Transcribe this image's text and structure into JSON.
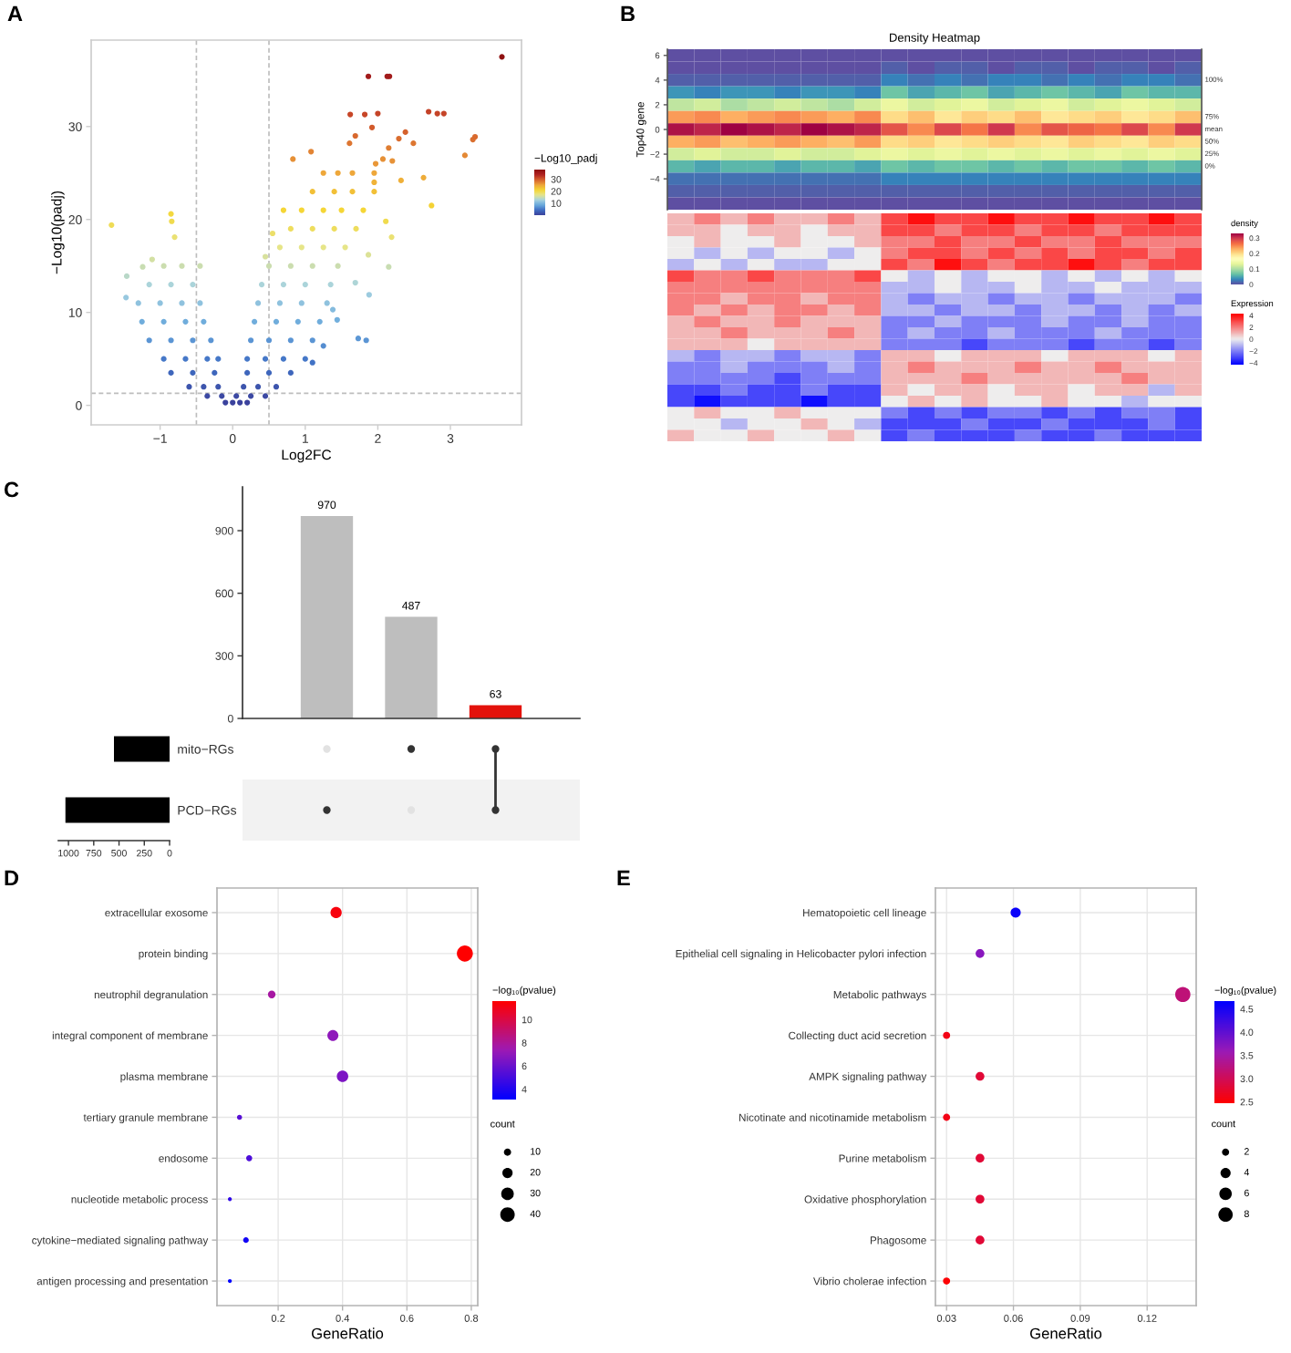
{
  "chart_data": [
    {
      "type": "scatter",
      "x": [
        -0.1,
        0,
        0.1,
        0.2,
        -0.35,
        -0.15,
        0.05,
        0.25,
        0.45,
        -0.6,
        -0.4,
        -0.2,
        0.15,
        0.35,
        0.6,
        -0.85,
        -0.55,
        -0.25,
        0.2,
        0.5,
        0.8,
        -0.95,
        -0.65,
        -0.35,
        -0.2,
        0.2,
        0.45,
        0.7,
        1.0,
        -1.15,
        -0.85,
        -0.55,
        -0.3,
        0.25,
        0.5,
        0.8,
        1.1,
        -1.25,
        -0.95,
        -0.65,
        -0.4,
        0.3,
        0.6,
        0.9,
        1.2,
        -1.3,
        -1.0,
        -0.7,
        -0.45,
        0.35,
        0.65,
        0.95,
        1.3,
        -1.15,
        -0.85,
        -0.55,
        0.4,
        0.7,
        1.0,
        1.35,
        -0.95,
        -0.7,
        -0.45,
        0.5,
        0.8,
        1.1,
        1.45,
        0.65,
        0.95,
        1.25,
        1.55,
        0.8,
        1.1,
        1.4,
        1.7,
        0.95,
        1.25,
        1.5,
        1.8,
        1.1,
        1.4,
        1.65,
        1.95,
        1.25,
        1.45,
        1.65,
        1.95,
        3.71,
        1.87,
        2.13,
        2.16,
        1.62,
        1.82,
        2.0,
        2.7,
        2.82,
        2.91,
        3.2,
        3.31,
        3.34,
        2.74,
        2.63,
        1.84,
        1.73,
        0.83,
        1.08,
        2.38,
        2.29,
        2.49,
        2.15,
        1.92,
        1.69,
        1.61,
        1.97,
        2.07,
        2.2,
        2.32,
        1.95,
        2.11,
        2.19,
        1.87,
        2.15,
        1.69,
        1.88,
        1.38,
        1.44,
        1.25,
        1.1,
        -0.85,
        -0.84,
        -0.8,
        -1.11,
        -1.24,
        -1.46,
        -1.47,
        -1.67,
        0.7,
        0.45,
        0.55
      ],
      "values": [
        0.3,
        0.3,
        0.3,
        0.3,
        1,
        1,
        1,
        1,
        1,
        2,
        2,
        2,
        2,
        2,
        2,
        3.5,
        3.5,
        3.5,
        3.5,
        3.5,
        3.5,
        5,
        5,
        5,
        5,
        5,
        5,
        5,
        5,
        7,
        7,
        7,
        7,
        7,
        7,
        7,
        7,
        9,
        9,
        9,
        9,
        9,
        9,
        9,
        9,
        11,
        11,
        11,
        11,
        11,
        11,
        11,
        11,
        13,
        13,
        13,
        13,
        13,
        13,
        13,
        15,
        15,
        15,
        15,
        15,
        15,
        15,
        17,
        17,
        17,
        17,
        19,
        19,
        19,
        19,
        21,
        21,
        21,
        21,
        23,
        23,
        23,
        23,
        25,
        25,
        25,
        25,
        37.5,
        35.4,
        35.4,
        35.4,
        31.3,
        31.3,
        31.4,
        31.6,
        31.4,
        31.4,
        26.9,
        28.6,
        28.9,
        21.5,
        24.5,
        7.0,
        7.2,
        26.5,
        27.3,
        29.4,
        28.7,
        28.2,
        27.7,
        29.9,
        29.0,
        28.2,
        26.0,
        26.5,
        26.3,
        24.2,
        24.0,
        19.8,
        18.1,
        16.2,
        14.9,
        13.2,
        11.9,
        10.3,
        9.2,
        6.4,
        4.6,
        20.6,
        19.8,
        18.1,
        15.7,
        14.9,
        13.9,
        11.6,
        19.4,
        21.0,
        16.0,
        18.5
      ],
      "cvalues": [
        0.3,
        0.3,
        0.3,
        0.3,
        1,
        1,
        1,
        1,
        1,
        2,
        2,
        2,
        2,
        2,
        2,
        3.5,
        3.5,
        3.5,
        3.5,
        3.5,
        3.5,
        5,
        5,
        5,
        5,
        5,
        5,
        5,
        5,
        7,
        7,
        7,
        7,
        7,
        7,
        7,
        7,
        9,
        9,
        9,
        9,
        9,
        9,
        9,
        9,
        11,
        11,
        11,
        11,
        11,
        11,
        11,
        11,
        13,
        13,
        13,
        13,
        13,
        13,
        13,
        15,
        15,
        15,
        15,
        15,
        15,
        15,
        17,
        17,
        17,
        17,
        19,
        19,
        19,
        19,
        21,
        21,
        21,
        21,
        23,
        23,
        23,
        23,
        25,
        25,
        25,
        25,
        37.5,
        35.4,
        35.4,
        35.4,
        31.3,
        31.3,
        31.4,
        31.6,
        31.4,
        31.4,
        26.9,
        28.6,
        28.9,
        21.5,
        24.5,
        7.0,
        7.2,
        26.5,
        27.3,
        29.4,
        28.7,
        28.2,
        27.7,
        29.9,
        29.0,
        28.2,
        26.0,
        26.5,
        26.3,
        24.2,
        24.0,
        19.8,
        18.1,
        16.2,
        14.9,
        13.2,
        11.9,
        10.3,
        9.2,
        6.4,
        4.6,
        20.6,
        19.8,
        18.1,
        15.7,
        14.9,
        13.9,
        11.6,
        19.4,
        21.0,
        16.0,
        18.5
      ],
      "clim": [
        0,
        38
      ],
      "cticks": [
        10,
        20,
        30
      ],
      "clabel": "−Log10_padj",
      "marker": "circle",
      "xlabel": "Log2FC",
      "ylabel": "−Log10(padj)",
      "xlim": [
        -1.95,
        3.98
      ],
      "ylim": [
        -2.1,
        39.3
      ],
      "xticks": [
        {
          "value": -1,
          "label": "−1"
        },
        0,
        1,
        2,
        3
      ],
      "yticks": [
        0,
        10,
        20,
        30
      ],
      "ref_lines": [
        {
          "axis": "x",
          "value": -0.5,
          "line_style": "dashed",
          "color": "#bdbdbd"
        },
        {
          "axis": "x",
          "value": 0.5,
          "line_style": "dashed",
          "color": "#bdbdbd"
        },
        {
          "axis": "y",
          "value": 1.3,
          "line_style": "dashed",
          "color": "#bdbdbd"
        }
      ],
      "annotations": [
        "A"
      ]
    },
    {
      "type": "heatmap",
      "title": "Density Heatmap",
      "ylabel": "Top40 gene",
      "categories": [
        null,
        null,
        null,
        null,
        null,
        null,
        null,
        null,
        null,
        null,
        null,
        null,
        null,
        null,
        null,
        null,
        null,
        null,
        null,
        null
      ],
      "y_categories": [
        "6",
        null,
        "4",
        null,
        "2",
        null,
        "0",
        null,
        "−2",
        null,
        "−4",
        null,
        null
      ],
      "y2_categories": [
        null,
        null,
        "100%",
        null,
        null,
        "75%",
        "mean",
        "50%",
        "25%",
        "0%",
        null,
        null,
        null
      ],
      "cells": [
        [
          0,
          0,
          0,
          0,
          0,
          0,
          0,
          0,
          0,
          0,
          0,
          0,
          0,
          0,
          0,
          0,
          0,
          0,
          0,
          0
        ],
        [
          0,
          0,
          0,
          0,
          0,
          0,
          0,
          0,
          0.01,
          0,
          0.01,
          0.01,
          0,
          0.01,
          0.01,
          0,
          0.01,
          0.01,
          0,
          0.01
        ],
        [
          0.01,
          0.01,
          0.01,
          0.01,
          0.01,
          0.01,
          0.01,
          0.01,
          0.03,
          0.02,
          0.03,
          0.02,
          0.03,
          0.03,
          0.02,
          0.03,
          0.02,
          0.03,
          0.03,
          0.02
        ],
        [
          0.04,
          0.03,
          0.04,
          0.04,
          0.03,
          0.04,
          0.04,
          0.03,
          0.07,
          0.05,
          0.06,
          0.07,
          0.05,
          0.06,
          0.07,
          0.06,
          0.05,
          0.07,
          0.06,
          0.06
        ],
        [
          0.11,
          0.12,
          0.1,
          0.11,
          0.12,
          0.11,
          0.1,
          0.12,
          0.14,
          0.12,
          0.13,
          0.14,
          0.12,
          0.13,
          0.14,
          0.12,
          0.13,
          0.14,
          0.13,
          0.12
        ],
        [
          0.24,
          0.25,
          0.23,
          0.24,
          0.25,
          0.24,
          0.23,
          0.25,
          0.2,
          0.22,
          0.19,
          0.21,
          0.2,
          0.22,
          0.19,
          0.2,
          0.21,
          0.19,
          0.2,
          0.22
        ],
        [
          0.32,
          0.31,
          0.33,
          0.32,
          0.31,
          0.33,
          0.32,
          0.31,
          0.28,
          0.25,
          0.29,
          0.26,
          0.3,
          0.25,
          0.28,
          0.27,
          0.26,
          0.29,
          0.25,
          0.3
        ],
        [
          0.23,
          0.24,
          0.22,
          0.23,
          0.24,
          0.23,
          0.22,
          0.24,
          0.2,
          0.21,
          0.19,
          0.2,
          0.21,
          0.2,
          0.19,
          0.21,
          0.2,
          0.19,
          0.21,
          0.2
        ],
        [
          0.12,
          0.13,
          0.12,
          0.12,
          0.13,
          0.12,
          0.12,
          0.13,
          0.14,
          0.13,
          0.14,
          0.13,
          0.14,
          0.13,
          0.14,
          0.13,
          0.14,
          0.13,
          0.14,
          0.13
        ],
        [
          0.06,
          0.05,
          0.06,
          0.06,
          0.05,
          0.06,
          0.06,
          0.05,
          0.07,
          0.06,
          0.07,
          0.07,
          0.06,
          0.07,
          0.06,
          0.07,
          0.07,
          0.06,
          0.07,
          0.06
        ],
        [
          0.02,
          0.02,
          0.02,
          0.02,
          0.02,
          0.02,
          0.02,
          0.02,
          0.03,
          0.03,
          0.03,
          0.03,
          0.03,
          0.03,
          0.03,
          0.03,
          0.03,
          0.03,
          0.03,
          0.03
        ],
        [
          0.01,
          0.01,
          0.01,
          0.01,
          0.01,
          0.01,
          0.01,
          0.01,
          0.01,
          0.01,
          0.01,
          0.01,
          0.01,
          0.01,
          0.01,
          0.01,
          0.01,
          0.01,
          0.01,
          0.01
        ],
        [
          0,
          0,
          0,
          0,
          0,
          0,
          0,
          0,
          0,
          0,
          0,
          0,
          0,
          0,
          0,
          0,
          0,
          0,
          0,
          0
        ]
      ],
      "clim": [
        0,
        0.33
      ],
      "cticks": [
        0,
        0.1,
        0.2,
        0.3
      ],
      "clabel": "density",
      "annotations": [
        "B"
      ]
    },
    {
      "type": "heatmap",
      "categories": [
        null,
        null,
        null,
        null,
        null,
        null,
        null,
        null,
        null,
        null,
        null,
        null,
        null,
        null,
        null,
        null,
        null,
        null,
        null,
        null
      ],
      "y_categories": [
        null,
        null,
        null,
        null,
        null,
        null,
        null,
        null,
        null,
        null,
        null,
        null,
        null,
        null,
        null,
        null,
        null,
        null,
        null,
        null
      ],
      "cells": [
        [
          1,
          2,
          1,
          2,
          1,
          1,
          2,
          1,
          3,
          4,
          3,
          3,
          4,
          3,
          3,
          4,
          3,
          3,
          4,
          3
        ],
        [
          1,
          1,
          0,
          1,
          1,
          0,
          1,
          1,
          3,
          3,
          2,
          3,
          3,
          2,
          3,
          3,
          2,
          3,
          3,
          3
        ],
        [
          0,
          1,
          0,
          0,
          1,
          0,
          0,
          1,
          2,
          2,
          3,
          2,
          2,
          3,
          2,
          2,
          3,
          2,
          2,
          2
        ],
        [
          0,
          -1,
          0,
          -1,
          0,
          0,
          -1,
          0,
          2,
          3,
          3,
          2,
          3,
          2,
          3,
          2,
          3,
          3,
          2,
          3
        ],
        [
          -1,
          0,
          -1,
          0,
          -1,
          -1,
          0,
          0,
          3,
          2,
          4,
          3,
          2,
          3,
          3,
          4,
          3,
          2,
          3,
          3
        ],
        [
          3,
          2,
          2,
          3,
          2,
          2,
          2,
          3,
          0,
          -1,
          0,
          -1,
          0,
          0,
          -1,
          0,
          -1,
          0,
          -1,
          0
        ],
        [
          2,
          2,
          2,
          2,
          2,
          2,
          2,
          2,
          -1,
          -1,
          0,
          -1,
          -1,
          0,
          -1,
          -1,
          0,
          -1,
          -1,
          -1
        ],
        [
          2,
          2,
          1,
          2,
          2,
          1,
          2,
          2,
          -1,
          -2,
          -1,
          -1,
          -2,
          -1,
          -1,
          -2,
          -1,
          -1,
          -1,
          -2
        ],
        [
          2,
          1,
          2,
          1,
          2,
          2,
          1,
          2,
          -1,
          -1,
          -2,
          -1,
          -1,
          -2,
          -1,
          -1,
          -2,
          -1,
          -2,
          -1
        ],
        [
          1,
          2,
          1,
          1,
          2,
          1,
          1,
          1,
          -2,
          -2,
          -1,
          -2,
          -2,
          -2,
          -1,
          -2,
          -2,
          -1,
          -2,
          -2
        ],
        [
          1,
          1,
          2,
          1,
          1,
          1,
          2,
          1,
          -2,
          -1,
          -2,
          -2,
          -1,
          -2,
          -2,
          -2,
          -1,
          -2,
          -2,
          -2
        ],
        [
          1,
          1,
          1,
          0,
          1,
          1,
          1,
          1,
          -2,
          -2,
          -2,
          -3,
          -2,
          -2,
          -2,
          -3,
          -2,
          -2,
          -3,
          -2
        ],
        [
          -1,
          -2,
          -1,
          -1,
          -2,
          -1,
          -1,
          -2,
          1,
          1,
          0,
          1,
          1,
          1,
          0,
          1,
          1,
          1,
          0,
          1
        ],
        [
          -2,
          -2,
          -1,
          -2,
          -2,
          -2,
          -1,
          -2,
          1,
          2,
          1,
          1,
          1,
          2,
          1,
          1,
          2,
          1,
          1,
          1
        ],
        [
          -2,
          -2,
          -2,
          -2,
          -3,
          -2,
          -2,
          -2,
          1,
          1,
          1,
          2,
          1,
          1,
          1,
          1,
          1,
          2,
          1,
          1
        ],
        [
          -3,
          -3,
          -2,
          -3,
          -3,
          -2,
          -3,
          -3,
          1,
          0,
          1,
          1,
          0,
          1,
          1,
          0,
          1,
          1,
          -1,
          1
        ],
        [
          -3,
          -4,
          -3,
          -3,
          -3,
          -4,
          -3,
          -3,
          0,
          1,
          0,
          1,
          0,
          0,
          1,
          0,
          0,
          -1,
          0,
          0
        ],
        [
          0,
          1,
          0,
          0,
          1,
          0,
          0,
          0,
          -2,
          -3,
          -2,
          -3,
          -2,
          -2,
          -3,
          -2,
          -3,
          -2,
          -2,
          -3
        ],
        [
          0,
          0,
          -1,
          0,
          0,
          1,
          0,
          -1,
          -3,
          -3,
          -3,
          -2,
          -3,
          -3,
          -2,
          -3,
          -3,
          -3,
          -2,
          -3
        ],
        [
          1,
          0,
          0,
          1,
          0,
          0,
          1,
          0,
          -3,
          -2,
          -3,
          -3,
          -3,
          -2,
          -3,
          -3,
          -2,
          -3,
          -3,
          -3
        ]
      ],
      "clim": [
        -4.3,
        4.3
      ],
      "cticks": [
        {
          "value": -4,
          "label": "−4"
        },
        {
          "value": -2,
          "label": "−2"
        },
        0,
        2,
        4
      ],
      "clabel": "Expression"
    },
    {
      "type": "bar",
      "categories": [
        null,
        null,
        null
      ],
      "values": [
        970,
        487,
        63
      ],
      "colors": [
        "#bebebe",
        "#bebebe",
        "#e3120b"
      ],
      "data_labels": true,
      "ylim": [
        0,
        1110
      ],
      "yticks": [
        0,
        300,
        600,
        900
      ],
      "annotations": [
        "C"
      ]
    },
    {
      "type": "bar",
      "orientation": "horizontal",
      "categories": [
        "mito−RGs",
        "PCD−RGs"
      ],
      "values": [
        550,
        1030
      ],
      "color": "#000000",
      "xlim": [
        1100,
        0
      ],
      "xticks": [
        1000,
        750,
        500,
        250,
        0
      ]
    },
    {
      "type": "bubble",
      "orientation": "horizontal",
      "categories": [
        "extracellular exosome",
        "protein binding",
        "neutrophil degranulation",
        "integral component of membrane",
        "plasma membrane",
        "tertiary granule membrane",
        "endosome",
        "nucleotide metabolic process",
        "cytokine−mediated signaling pathway",
        "antigen processing and presentation"
      ],
      "values": [
        0.38,
        0.78,
        0.18,
        0.37,
        0.4,
        0.08,
        0.11,
        0.05,
        0.1,
        0.05
      ],
      "sizes": [
        24,
        49,
        11,
        23,
        25,
        5,
        7,
        3,
        6,
        3
      ],
      "size_legend": [
        10,
        20,
        30,
        40
      ],
      "legend_title": "count",
      "cvalues": [
        11.3,
        11.6,
        7.8,
        7.0,
        6.5,
        5.5,
        5.2,
        4.4,
        3.6,
        3.1
      ],
      "clim": [
        3.1,
        11.6
      ],
      "cticks": [
        4,
        6,
        8,
        10
      ],
      "clabel": "−log₁₀(pvalue)",
      "xlabel": "GeneRatio",
      "xlim": [
        0.01,
        0.82
      ],
      "xticks": [
        0.2,
        0.4,
        0.6,
        0.8
      ],
      "grid": true,
      "marker": "circle",
      "annotations": [
        "D"
      ]
    },
    {
      "type": "bubble",
      "orientation": "horizontal",
      "categories": [
        "Hematopoietic cell lineage",
        "Epithelial cell signaling in Helicobacter pylori infection",
        "Metabolic pathways",
        "Collecting duct acid secretion",
        "AMPK signaling pathway",
        "Nicotinate and nicotinamide metabolism",
        "Purine metabolism",
        "Oxidative phosphorylation",
        "Phagosome",
        "Vibrio cholerae infection"
      ],
      "values": [
        0.061,
        0.045,
        0.136,
        0.03,
        0.045,
        0.03,
        0.045,
        0.045,
        0.045,
        0.03
      ],
      "sizes": [
        4,
        3,
        9,
        2,
        3,
        2,
        3,
        3,
        3,
        2
      ],
      "size_legend": [
        2,
        4,
        6,
        8
      ],
      "legend_title": "count",
      "cvalues": [
        4.6,
        3.7,
        3.2,
        2.6,
        2.8,
        2.6,
        2.8,
        2.8,
        2.8,
        2.5
      ],
      "clim": [
        2.47,
        4.67
      ],
      "cticks": [
        2.5,
        {
          "value": 3,
          "label": "3.0"
        },
        3.5,
        {
          "value": 4,
          "label": "4.0"
        },
        4.5
      ],
      "clabel": "−log₁₀(pvalue)",
      "xlabel": "GeneRatio",
      "xlim": [
        0.025,
        0.142
      ],
      "xticks": [
        0.03,
        0.06,
        0.09,
        0.12
      ],
      "grid": true,
      "marker": "circle",
      "annotations": [
        "E"
      ]
    }
  ]
}
